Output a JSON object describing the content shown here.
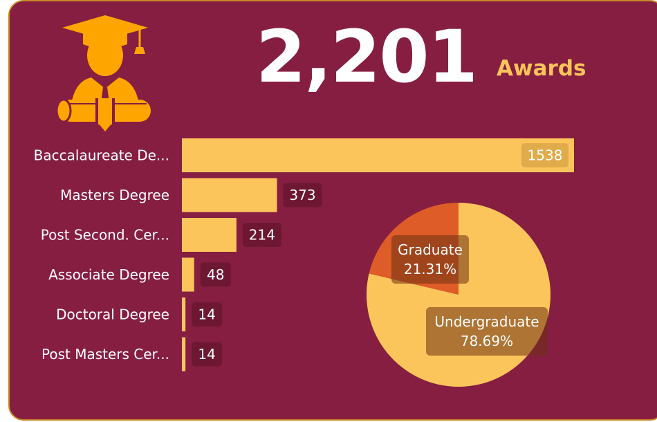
{
  "header": {
    "total": "2,201",
    "unit": "Awards"
  },
  "icons": {
    "graduate": "graduate-icon"
  },
  "colors": {
    "background": "#861e41",
    "border": "#c58a24",
    "bar": "#fcc55b",
    "accent": "#fcc55b",
    "graduate_slice": "#de5c27",
    "undergraduate_slice": "#fcc55b",
    "icon": "#ffa500"
  },
  "chart_data": [
    {
      "type": "bar",
      "orientation": "horizontal",
      "title": "",
      "categories": [
        "Baccalaureate De...",
        "Masters Degree",
        "Post Second. Cer...",
        "Associate Degree",
        "Doctoral Degree",
        "Post Masters Cer..."
      ],
      "values": [
        1538,
        373,
        214,
        48,
        14,
        14
      ],
      "value_labels": [
        "1538",
        "373",
        "214",
        "48",
        "14",
        "14"
      ],
      "xlim": [
        0,
        1538
      ],
      "grid": false
    },
    {
      "type": "pie",
      "title": "",
      "slices": [
        {
          "name": "Graduate",
          "value": 21.31,
          "label": "21.31%"
        },
        {
          "name": "Undergraduate",
          "value": 78.69,
          "label": "78.69%"
        }
      ]
    }
  ]
}
